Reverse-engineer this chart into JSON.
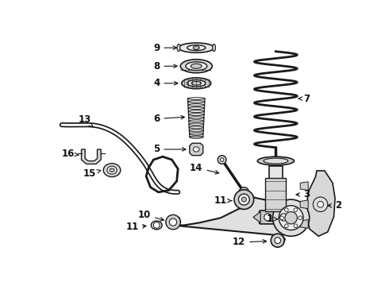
{
  "bg_color": "#ffffff",
  "line_color": "#1a1a1a",
  "label_color": "#111111",
  "label_fontsize": 8.5,
  "fig_width": 4.9,
  "fig_height": 3.6,
  "dpi": 100
}
